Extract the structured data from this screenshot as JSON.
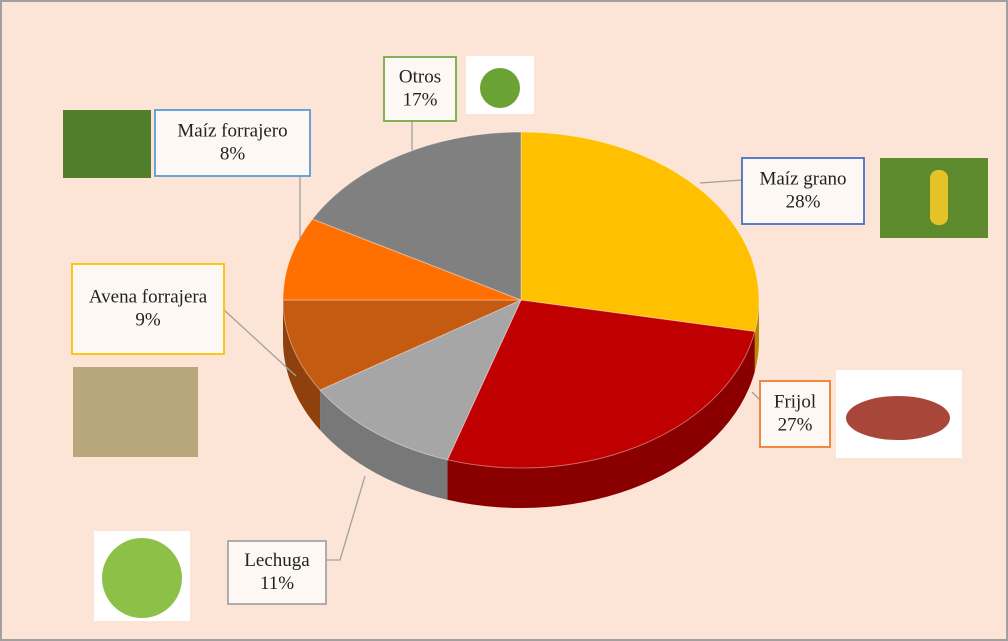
{
  "chart_data": {
    "type": "pie",
    "categories": [
      "Maíz grano",
      "Frijol",
      "Lechuga",
      "Avena forrajera",
      "Maíz forrajero",
      "Otros"
    ],
    "values": [
      28,
      27,
      11,
      9,
      8,
      17
    ],
    "value_labels": [
      "28%",
      "27%",
      "11%",
      "9%",
      "8%",
      "17%"
    ],
    "colors": [
      "#FFC000",
      "#C00000",
      "#A6A6A6",
      "#C55A11",
      "#FF7000",
      "#808080"
    ]
  }
}
